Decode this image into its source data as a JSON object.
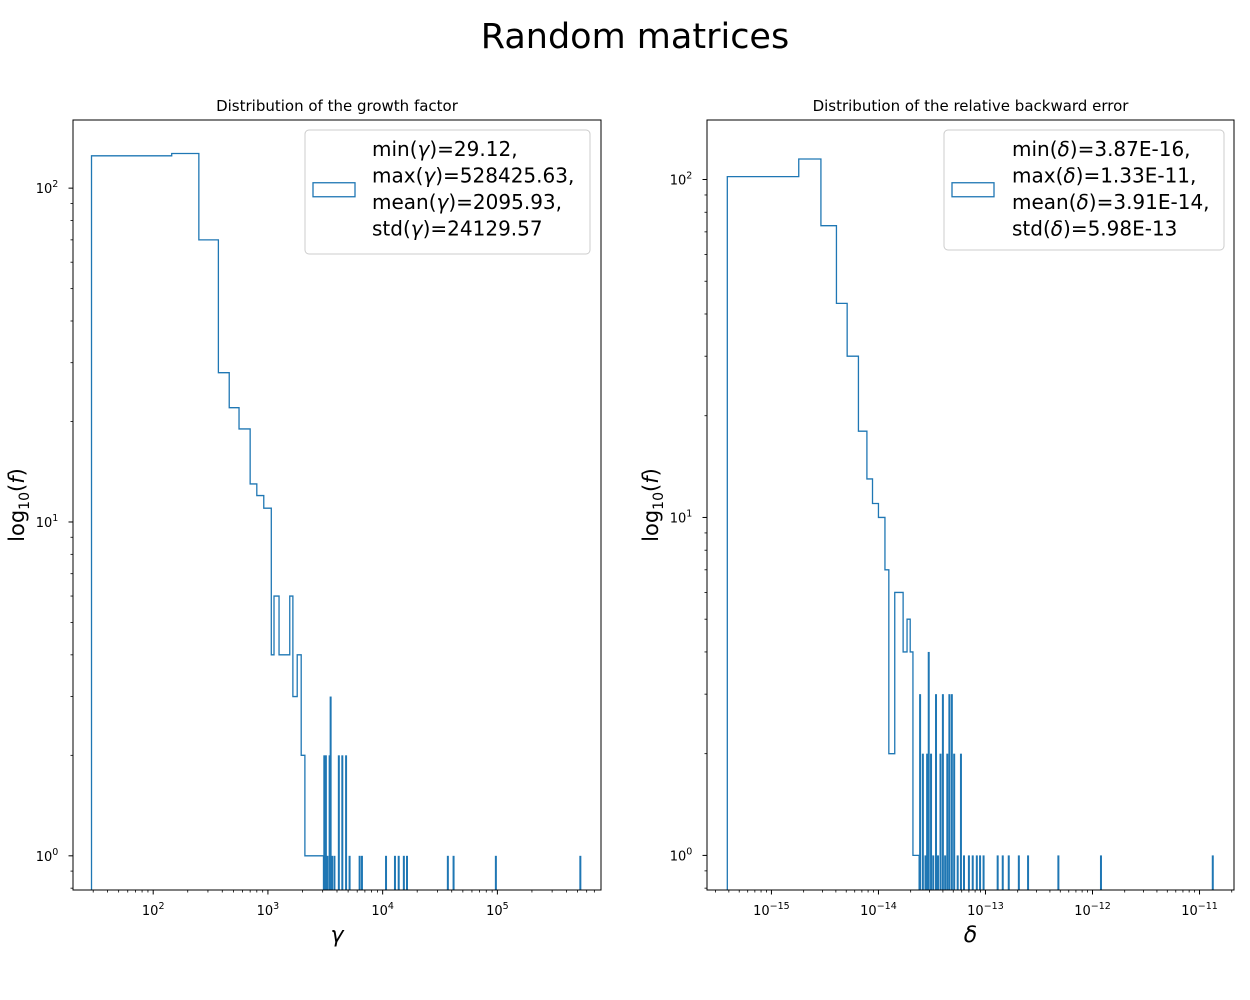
{
  "figure": {
    "suptitle": "Random matrices"
  },
  "chart_data": [
    {
      "type": "histogram-step",
      "title": "Distribution of the growth factor",
      "xlabel_symbol": "γ",
      "ylabel": {
        "main": "log",
        "sub": "10",
        "arg": "(f)"
      },
      "xscale": "log",
      "yscale": "log",
      "xlim": [
        20,
        800000
      ],
      "ylim": [
        0.79,
        160
      ],
      "x_ticks": [
        {
          "value": 100,
          "base": "10",
          "exp": "2"
        },
        {
          "value": 1000,
          "base": "10",
          "exp": "3"
        },
        {
          "value": 10000,
          "base": "10",
          "exp": "4"
        },
        {
          "value": 100000,
          "base": "10",
          "exp": "5"
        }
      ],
      "y_ticks": [
        {
          "value": 1,
          "base": "10",
          "exp": "0"
        },
        {
          "value": 10,
          "base": "10",
          "exp": "1"
        },
        {
          "value": 100,
          "base": "10",
          "exp": "2"
        }
      ],
      "color": "#1f77b4",
      "legend": {
        "position": "upper-right",
        "lines": [
          {
            "pre": "min(",
            "sym": "γ",
            "post": ")=29.12,"
          },
          {
            "pre": "max(",
            "sym": "γ",
            "post": ")=528425.63,"
          },
          {
            "pre": "mean(",
            "sym": "γ",
            "post": ")=2095.93,"
          },
          {
            "pre": "std(",
            "sym": "γ",
            "post": ")=24129.57"
          }
        ]
      },
      "steps": [
        [
          29,
          125
        ],
        [
          145,
          125
        ],
        [
          145,
          127
        ],
        [
          250,
          127
        ],
        [
          250,
          70
        ],
        [
          370,
          70
        ],
        [
          370,
          28
        ],
        [
          460,
          28
        ],
        [
          460,
          22
        ],
        [
          560,
          22
        ],
        [
          560,
          19
        ],
        [
          700,
          19
        ],
        [
          700,
          13
        ],
        [
          800,
          13
        ],
        [
          800,
          12
        ],
        [
          920,
          12
        ],
        [
          920,
          11
        ],
        [
          1070,
          11
        ],
        [
          1070,
          4
        ],
        [
          1130,
          4
        ],
        [
          1130,
          6
        ],
        [
          1250,
          6
        ],
        [
          1250,
          4
        ],
        [
          1550,
          4
        ],
        [
          1550,
          6
        ],
        [
          1650,
          6
        ],
        [
          1650,
          3
        ],
        [
          1800,
          3
        ],
        [
          1800,
          4
        ],
        [
          1950,
          4
        ],
        [
          1950,
          2
        ],
        [
          2100,
          2
        ],
        [
          2100,
          1
        ],
        [
          3050,
          1
        ]
      ],
      "spikes": [
        {
          "x": 3100,
          "h": 2
        },
        {
          "x": 3200,
          "h": 2
        },
        {
          "x": 3300,
          "h": 1
        },
        {
          "x": 3450,
          "h": 2
        },
        {
          "x": 3520,
          "h": 3
        },
        {
          "x": 3620,
          "h": 1
        },
        {
          "x": 3800,
          "h": 1
        },
        {
          "x": 4150,
          "h": 2
        },
        {
          "x": 4450,
          "h": 2
        },
        {
          "x": 4800,
          "h": 2
        },
        {
          "x": 5150,
          "h": 1
        },
        {
          "x": 6300,
          "h": 1
        },
        {
          "x": 6600,
          "h": 1
        },
        {
          "x": 10700,
          "h": 1
        },
        {
          "x": 12800,
          "h": 1
        },
        {
          "x": 13800,
          "h": 1
        },
        {
          "x": 15300,
          "h": 1
        },
        {
          "x": 16300,
          "h": 1
        },
        {
          "x": 37000,
          "h": 1
        },
        {
          "x": 41500,
          "h": 1
        },
        {
          "x": 97000,
          "h": 1
        },
        {
          "x": 528425.63,
          "h": 1
        }
      ]
    },
    {
      "type": "histogram-step",
      "title": "Distribution of the relative backward error",
      "xlabel_symbol": "δ",
      "ylabel": {
        "main": "log",
        "sub": "10",
        "arg": "(f)"
      },
      "xscale": "log",
      "yscale": "log",
      "xlim": [
        2.5e-16,
        2.1e-11
      ],
      "ylim": [
        0.79,
        150
      ],
      "x_ticks": [
        {
          "value": 1e-15,
          "base": "10",
          "exp": "−15"
        },
        {
          "value": 1e-14,
          "base": "10",
          "exp": "−14"
        },
        {
          "value": 1e-13,
          "base": "10",
          "exp": "−13"
        },
        {
          "value": 1e-12,
          "base": "10",
          "exp": "−12"
        },
        {
          "value": 1e-11,
          "base": "10",
          "exp": "−11"
        }
      ],
      "y_ticks": [
        {
          "value": 1,
          "base": "10",
          "exp": "0"
        },
        {
          "value": 10,
          "base": "10",
          "exp": "1"
        },
        {
          "value": 100,
          "base": "10",
          "exp": "2"
        }
      ],
      "color": "#1f77b4",
      "legend": {
        "position": "upper-right",
        "lines": [
          {
            "pre": "min(",
            "sym": "δ",
            "post": ")=3.87E-16,"
          },
          {
            "pre": "max(",
            "sym": "δ",
            "post": ")=1.33E-11,"
          },
          {
            "pre": "mean(",
            "sym": "δ",
            "post": ")=3.91E-14,"
          },
          {
            "pre": "std(",
            "sym": "δ",
            "post": ")=5.98E-13"
          }
        ]
      },
      "steps": [
        [
          3.87e-16,
          102
        ],
        [
          1.8e-15,
          102
        ],
        [
          1.8e-15,
          115
        ],
        [
          2.9e-15,
          115
        ],
        [
          2.9e-15,
          73
        ],
        [
          4.05e-15,
          73
        ],
        [
          4.05e-15,
          43
        ],
        [
          5.1e-15,
          43
        ],
        [
          5.1e-15,
          30
        ],
        [
          6.5e-15,
          30
        ],
        [
          6.5e-15,
          18
        ],
        [
          7.8e-15,
          18
        ],
        [
          7.8e-15,
          13
        ],
        [
          8.8e-15,
          13
        ],
        [
          8.8e-15,
          11
        ],
        [
          1e-14,
          11
        ],
        [
          1e-14,
          10
        ],
        [
          1.15e-14,
          10
        ],
        [
          1.15e-14,
          7
        ],
        [
          1.25e-14,
          7
        ],
        [
          1.25e-14,
          2
        ],
        [
          1.42e-14,
          2
        ],
        [
          1.42e-14,
          6
        ],
        [
          1.7e-14,
          6
        ],
        [
          1.7e-14,
          4
        ],
        [
          1.85e-14,
          4
        ],
        [
          1.85e-14,
          5
        ],
        [
          1.98e-14,
          5
        ],
        [
          1.98e-14,
          4
        ],
        [
          2.1e-14,
          4
        ],
        [
          2.1e-14,
          1
        ],
        [
          2.4e-14,
          1
        ]
      ],
      "spikes": [
        {
          "x": 2.45e-14,
          "h": 3
        },
        {
          "x": 2.6e-14,
          "h": 2
        },
        {
          "x": 2.75e-14,
          "h": 1
        },
        {
          "x": 2.85e-14,
          "h": 2
        },
        {
          "x": 2.95e-14,
          "h": 4
        },
        {
          "x": 3.1e-14,
          "h": 2
        },
        {
          "x": 3.25e-14,
          "h": 1
        },
        {
          "x": 3.45e-14,
          "h": 3
        },
        {
          "x": 3.6e-14,
          "h": 1
        },
        {
          "x": 3.8e-14,
          "h": 2
        },
        {
          "x": 4e-14,
          "h": 3
        },
        {
          "x": 4.2e-14,
          "h": 1
        },
        {
          "x": 4.4e-14,
          "h": 2
        },
        {
          "x": 4.6e-14,
          "h": 3
        },
        {
          "x": 4.85e-14,
          "h": 3
        },
        {
          "x": 5.1e-14,
          "h": 2
        },
        {
          "x": 5.5e-14,
          "h": 1
        },
        {
          "x": 5.9e-14,
          "h": 2
        },
        {
          "x": 6.3e-14,
          "h": 1
        },
        {
          "x": 7e-14,
          "h": 1
        },
        {
          "x": 7.6e-14,
          "h": 1
        },
        {
          "x": 8.3e-14,
          "h": 1
        },
        {
          "x": 8.9e-14,
          "h": 1
        },
        {
          "x": 9.6e-14,
          "h": 1
        },
        {
          "x": 1.3e-13,
          "h": 1
        },
        {
          "x": 1.45e-13,
          "h": 1
        },
        {
          "x": 1.65e-13,
          "h": 1
        },
        {
          "x": 2.05e-13,
          "h": 1
        },
        {
          "x": 2.5e-13,
          "h": 1
        },
        {
          "x": 4.8e-13,
          "h": 1
        },
        {
          "x": 1.2e-12,
          "h": 1
        },
        {
          "x": 1.33e-11,
          "h": 1
        }
      ]
    }
  ]
}
